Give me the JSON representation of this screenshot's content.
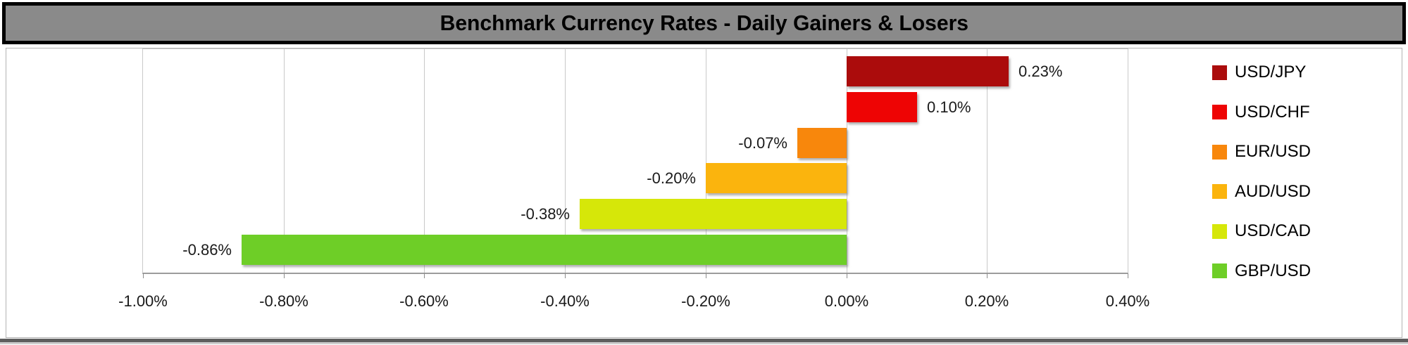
{
  "title": "Benchmark Currency Rates - Daily Gainers & Losers",
  "colors": {
    "title_bar_bg": "#8A8A8A",
    "title_text": "#000000",
    "gridline": "#C9C9C9",
    "axis_line": "#9C9C9C",
    "bottom_rule": "#5E5E5E"
  },
  "chart_data": {
    "type": "bar",
    "orientation": "horizontal",
    "title": "Benchmark Currency Rates - Daily Gainers & Losers",
    "categories": [
      "USD/JPY",
      "USD/CHF",
      "EUR/USD",
      "AUD/USD",
      "USD/CAD",
      "GBP/USD"
    ],
    "values": [
      0.23,
      0.1,
      -0.07,
      -0.2,
      -0.38,
      -0.86
    ],
    "data_labels": [
      "0.23%",
      "0.10%",
      "-0.07%",
      "-0.20%",
      "-0.38%",
      "-0.86%"
    ],
    "bar_colors": [
      "#AB0C0C",
      "#EE0404",
      "#F8870C",
      "#FBB40D",
      "#D6E709",
      "#6ECE27"
    ],
    "xlim": [
      -1.0,
      0.4
    ],
    "x_ticks": [
      {
        "value": -1.0,
        "label": "-1.00%"
      },
      {
        "value": -0.8,
        "label": "-0.80%"
      },
      {
        "value": -0.6,
        "label": "-0.60%"
      },
      {
        "value": -0.4,
        "label": "-0.40%"
      },
      {
        "value": -0.2,
        "label": "-0.20%"
      },
      {
        "value": 0.0,
        "label": "0.00%"
      },
      {
        "value": 0.2,
        "label": "0.20%"
      },
      {
        "value": 0.4,
        "label": "0.40%"
      }
    ],
    "grid": true,
    "legend_position": "right",
    "legend": [
      {
        "label": "USD/JPY",
        "color": "#AB0C0C"
      },
      {
        "label": "USD/CHF",
        "color": "#EE0404"
      },
      {
        "label": "EUR/USD",
        "color": "#F8870C"
      },
      {
        "label": "AUD/USD",
        "color": "#FBB40D"
      },
      {
        "label": "USD/CAD",
        "color": "#D6E709"
      },
      {
        "label": "GBP/USD",
        "color": "#6ECE27"
      }
    ]
  }
}
